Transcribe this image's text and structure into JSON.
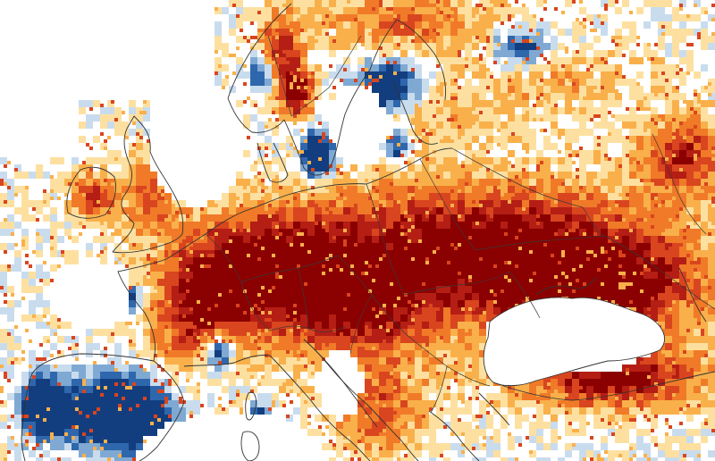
{
  "map": {
    "region": "Europe",
    "colors": {
      "extreme": "#8b0000",
      "very_high": "#b41e14",
      "high": "#d9451f",
      "moderate": "#f07a28",
      "low": "#f9b04a",
      "slight": "#fde0a0",
      "neutral": "#ffffff",
      "slight_cool": "#c9dcee",
      "cool": "#7fa9d3",
      "cold": "#2f67ad",
      "very_cold": "#123e80"
    }
  }
}
